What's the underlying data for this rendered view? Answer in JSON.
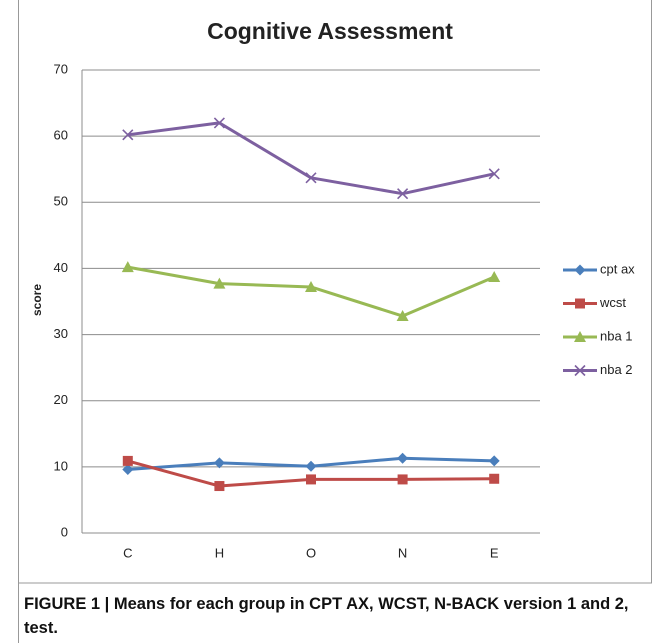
{
  "chart_data": {
    "type": "line",
    "title": "Cognitive Assessment",
    "y_label": "score",
    "categories": [
      "C",
      "H",
      "O",
      "N",
      "E"
    ],
    "series": [
      {
        "name": "cpt ax",
        "color": "#4a7ebb",
        "marker": "diamond",
        "values": [
          9.6,
          10.6,
          10.1,
          11.3,
          10.9
        ]
      },
      {
        "name": "wcst",
        "color": "#be4b48",
        "marker": "square",
        "values": [
          10.9,
          7.1,
          8.1,
          8.1,
          8.2
        ]
      },
      {
        "name": "nba 1",
        "color": "#98b954",
        "marker": "triangle",
        "values": [
          40.2,
          37.7,
          37.2,
          32.8,
          38.7
        ]
      },
      {
        "name": "nba 2",
        "color": "#7d60a0",
        "marker": "x",
        "values": [
          60.2,
          62.0,
          53.7,
          51.3,
          54.3
        ]
      }
    ],
    "ylim": [
      0,
      70
    ],
    "yticks": [
      0,
      10,
      20,
      30,
      40,
      50,
      60,
      70
    ],
    "grid": true,
    "legend": "right"
  },
  "caption": "FIGURE 1 | Means for each group in CPT AX, WCST, N-BACK version 1 and 2, test."
}
